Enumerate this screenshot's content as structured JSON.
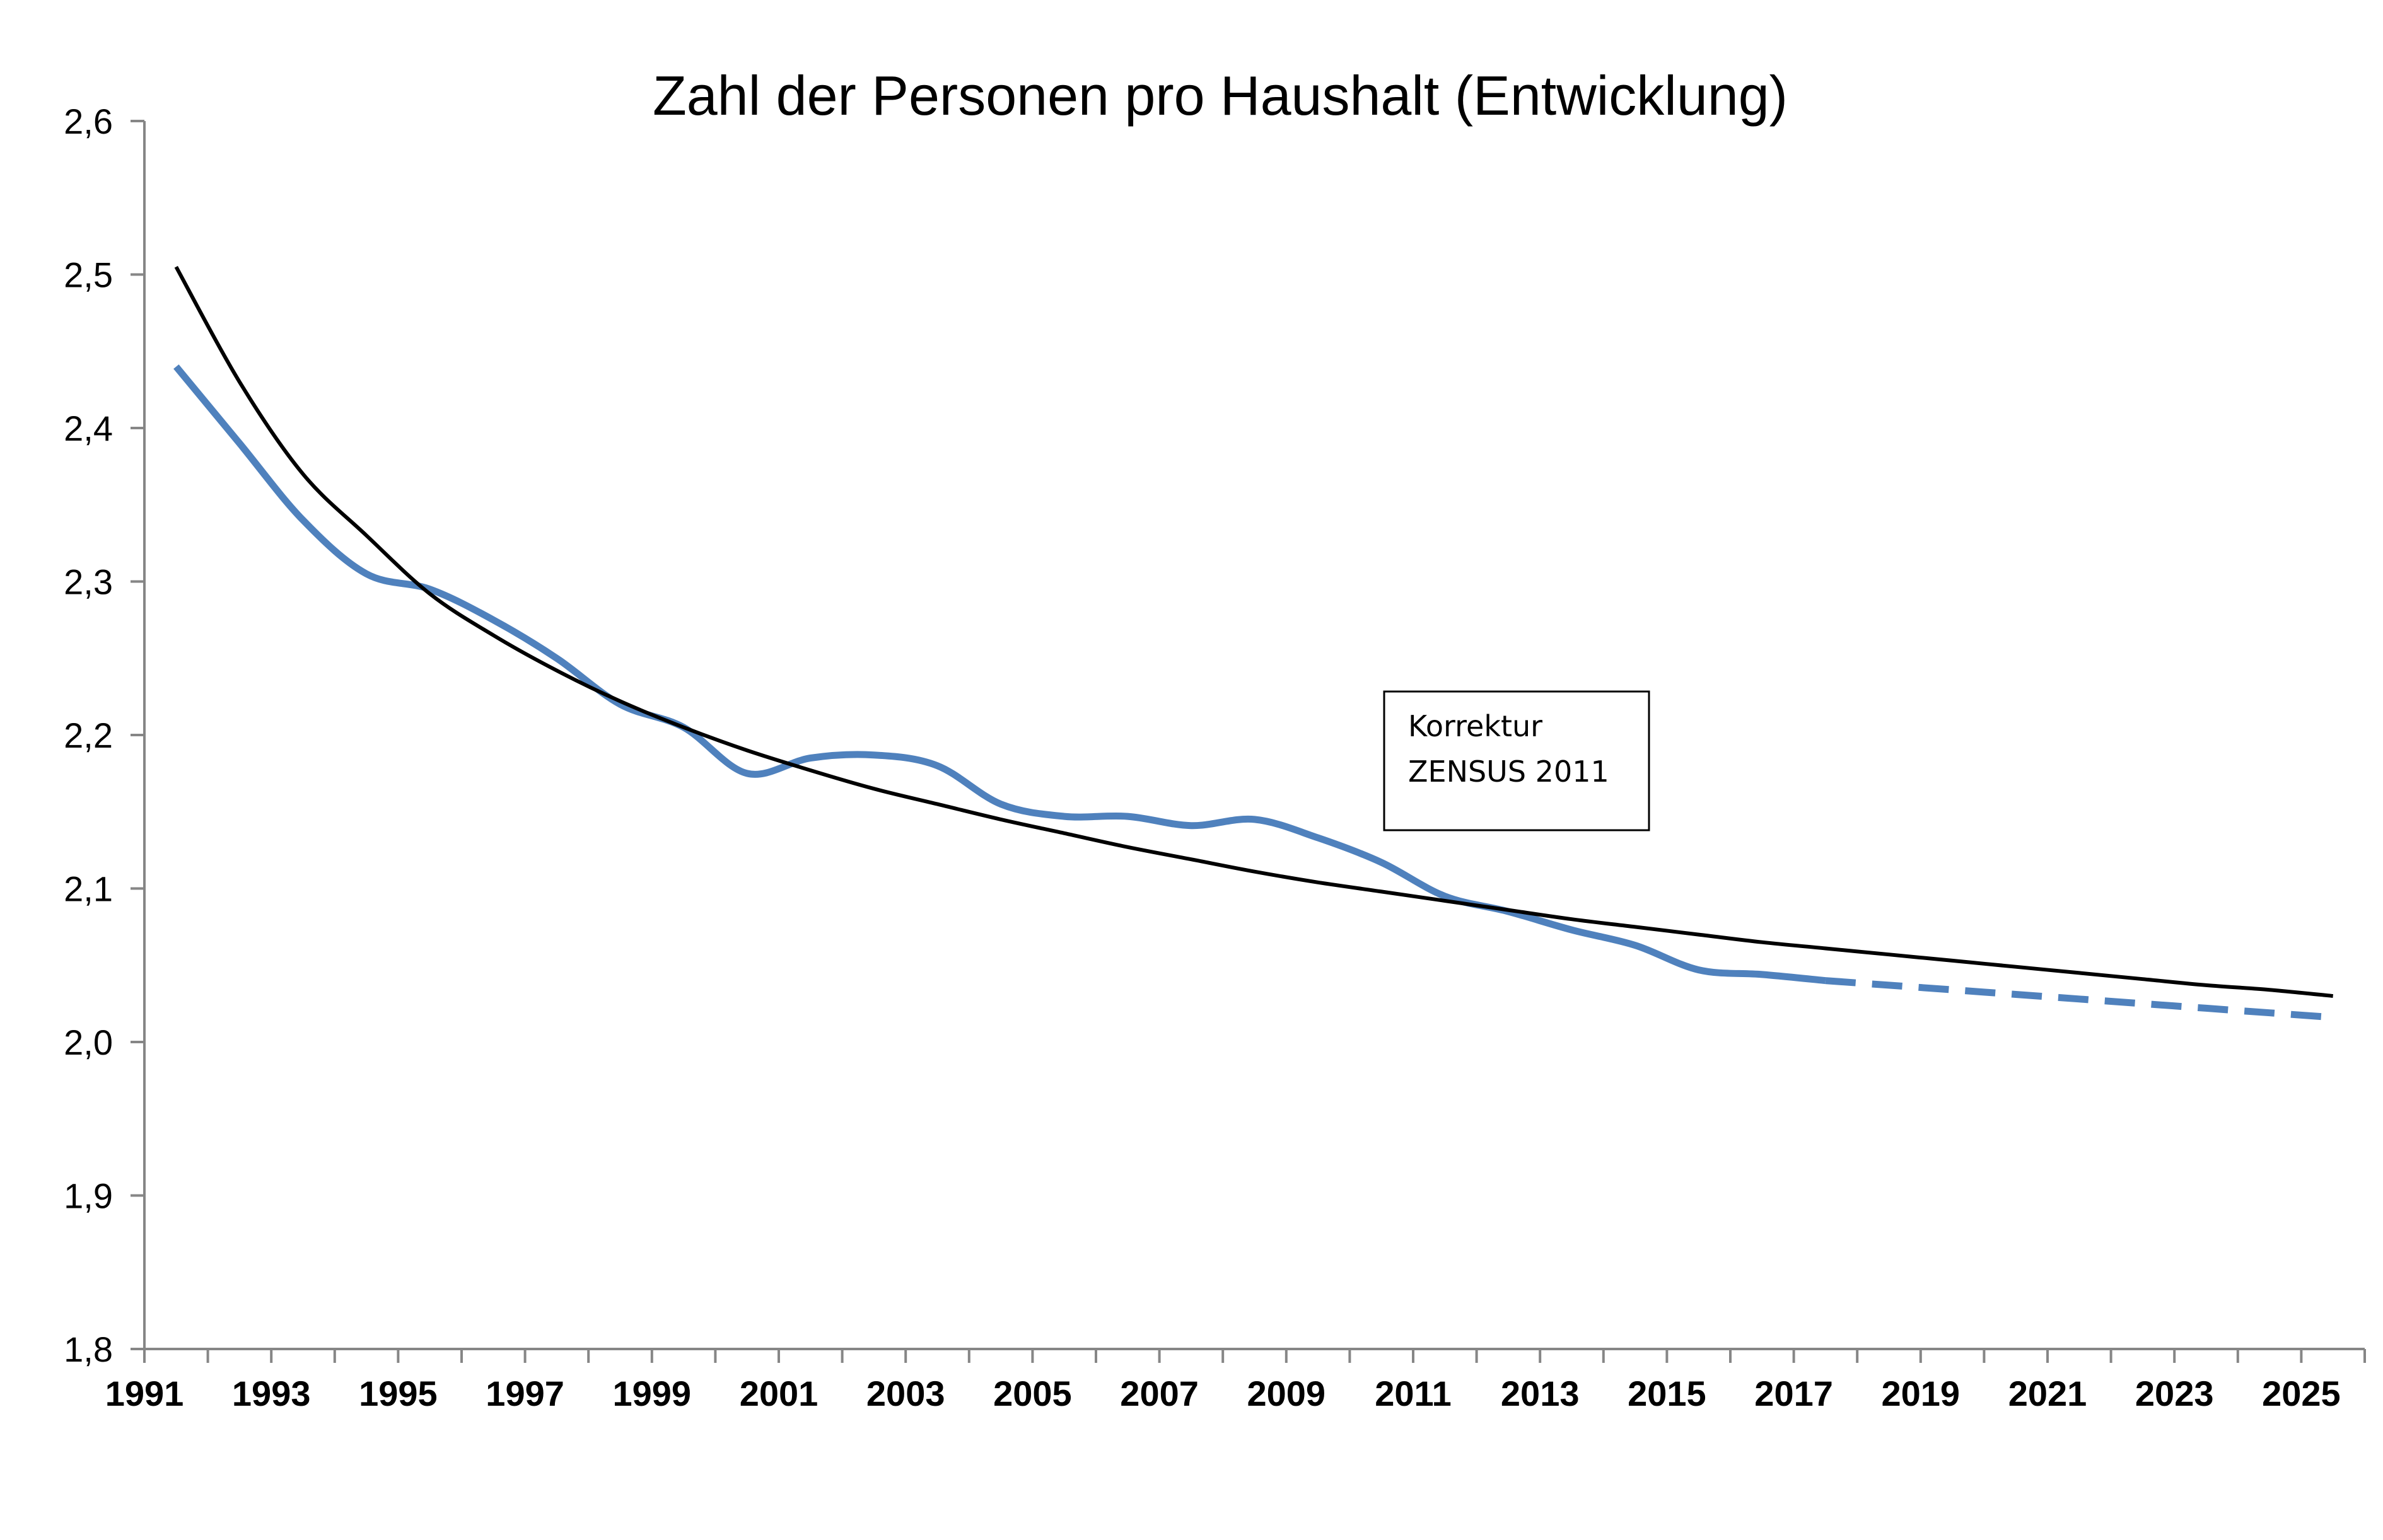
{
  "chart_data": {
    "type": "line",
    "title": "Zahl der Personen pro Haushalt (Entwicklung)",
    "xlabel": "",
    "ylabel": "",
    "xlim": [
      1991,
      2026
    ],
    "ylim": [
      1.8,
      2.6
    ],
    "y_ticks": [
      "1,8",
      "1,9",
      "2,0",
      "2,1",
      "2,2",
      "2,3",
      "2,4",
      "2,5",
      "2,6"
    ],
    "y_tick_values": [
      1.8,
      1.9,
      2.0,
      2.1,
      2.2,
      2.3,
      2.4,
      2.5,
      2.6
    ],
    "x_ticks": [
      "1991",
      "1993",
      "1995",
      "1997",
      "1999",
      "2001",
      "2003",
      "2005",
      "2007",
      "2009",
      "2011",
      "2013",
      "2015",
      "2017",
      "2019",
      "2021",
      "2023",
      "2025"
    ],
    "x_tick_values": [
      1991,
      1993,
      1995,
      1997,
      1999,
      2001,
      2003,
      2005,
      2007,
      2009,
      2011,
      2013,
      2015,
      2017,
      2019,
      2021,
      2023,
      2025
    ],
    "grid": false,
    "legend": "none",
    "series": [
      {
        "color": "#4f81bd",
        "style": "solid",
        "x": [
          1991.5,
          1992.5,
          1993.5,
          1994.5,
          1995.5,
          1996.5,
          1997.5,
          1998.5,
          1999.5,
          2000.5,
          2001.5,
          2002.5,
          2003.5,
          2004.5,
          2005.5,
          2006.5,
          2007.5,
          2008.5,
          2009.5,
          2010.5,
          2011.5,
          2012.5,
          2013.5,
          2014.5,
          2015.5,
          2016.5,
          2017.5
        ],
        "y": [
          2.44,
          2.39,
          2.34,
          2.305,
          2.295,
          2.275,
          2.25,
          2.22,
          2.205,
          2.175,
          2.185,
          2.187,
          2.18,
          2.155,
          2.147,
          2.147,
          2.141,
          2.145,
          2.133,
          2.117,
          2.095,
          2.085,
          2.073,
          2.063,
          2.047,
          2.044,
          2.04
        ]
      },
      {
        "color": "#4f81bd",
        "style": "dashed",
        "x": [
          2017.5,
          2018.5,
          2019.5,
          2020.5,
          2021.5,
          2022.5,
          2023.5,
          2024.5,
          2025.5
        ],
        "y": [
          2.04,
          2.037,
          2.034,
          2.031,
          2.028,
          2.025,
          2.022,
          2.019,
          2.016
        ]
      },
      {
        "color": "#000000",
        "style": "solid",
        "trend": "trendline",
        "x": [
          1991.5,
          1992.5,
          1993.5,
          1994.5,
          1995.5,
          1996.5,
          1997.5,
          1998.5,
          1999.5,
          2000.5,
          2001.5,
          2002.5,
          2003.5,
          2004.5,
          2005.5,
          2006.5,
          2007.5,
          2008.5,
          2009.5,
          2010.5,
          2011.5,
          2012.5,
          2013.5,
          2014.5,
          2015.5,
          2016.5,
          2017.5,
          2018.5,
          2019.5,
          2020.5,
          2021.5,
          2022.5,
          2023.5,
          2024.5,
          2025.5
        ],
        "y": [
          2.505,
          2.43,
          2.37,
          2.33,
          2.292,
          2.265,
          2.242,
          2.222,
          2.205,
          2.19,
          2.177,
          2.165,
          2.155,
          2.145,
          2.136,
          2.127,
          2.119,
          2.111,
          2.104,
          2.098,
          2.092,
          2.086,
          2.08,
          2.075,
          2.07,
          2.065,
          2.061,
          2.057,
          2.053,
          2.049,
          2.045,
          2.041,
          2.037,
          2.034,
          2.03
        ]
      }
    ],
    "annotation": {
      "lines": [
        "Korrektur",
        "ZENSUS 2011"
      ]
    }
  }
}
